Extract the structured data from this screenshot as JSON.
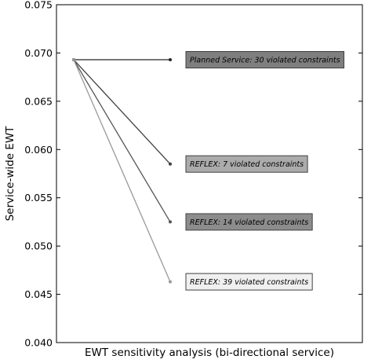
{
  "chart_data": {
    "type": "line",
    "title": "",
    "xlabel": "EWT sensitivity analysis (bi-directional service)",
    "ylabel": "Service-wide EWT",
    "ylim": [
      0.04,
      0.075
    ],
    "y_ticks": [
      "0.040",
      "0.045",
      "0.050",
      "0.055",
      "0.060",
      "0.065",
      "0.070",
      "0.075"
    ],
    "y_tick_values": [
      0.04,
      0.045,
      0.05,
      0.055,
      0.06,
      0.065,
      0.07,
      0.075
    ],
    "x_ticks_shown": false,
    "grid": false,
    "series": [
      {
        "start": 0.0693,
        "end": 0.0693,
        "color": "#262626",
        "annotation": "Planned Service: 30 violated constraints",
        "annotation_fill": "#7f7f7f"
      },
      {
        "start": 0.0693,
        "end": 0.0585,
        "color": "#3f3f3f",
        "annotation": "REFLEX: 7 violated constraints",
        "annotation_fill": "#ababab"
      },
      {
        "start": 0.0693,
        "end": 0.0525,
        "color": "#555555",
        "annotation": "REFLEX: 14 violated constraints",
        "annotation_fill": "#8c8c8c"
      },
      {
        "start": 0.0693,
        "end": 0.0463,
        "color": "#999999",
        "annotation": "REFLEX: 39 violated constraints",
        "annotation_fill": "#f0f0f0"
      }
    ]
  }
}
